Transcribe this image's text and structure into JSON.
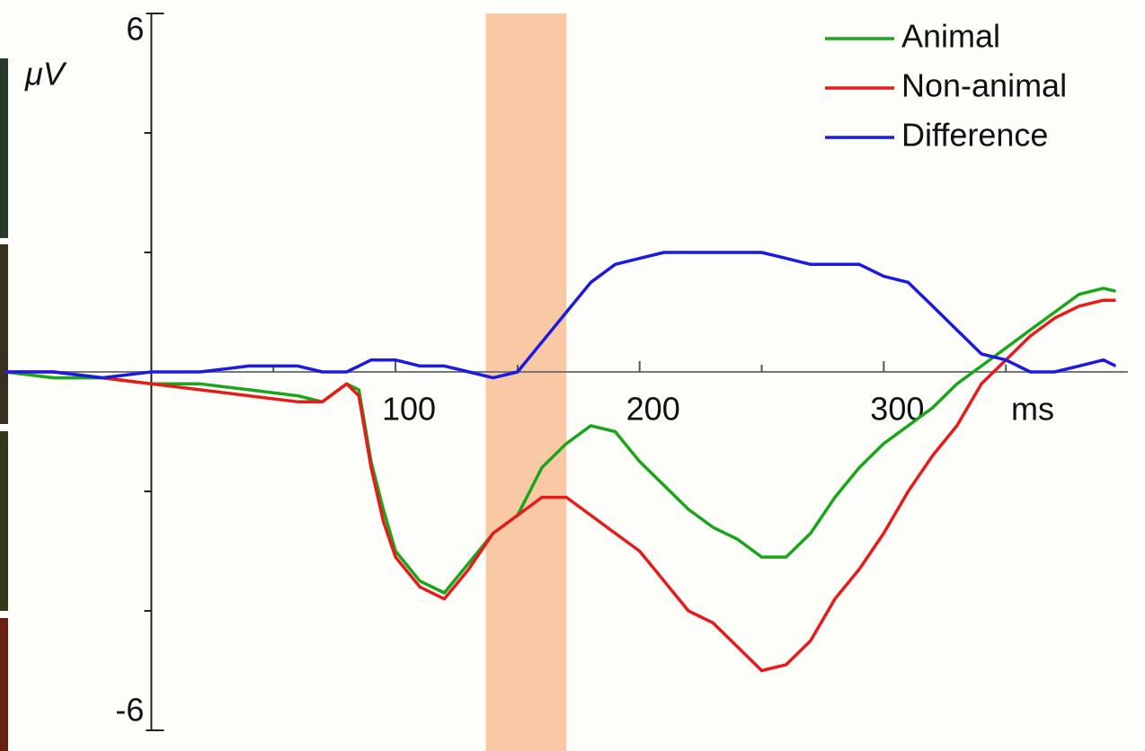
{
  "chart_data": {
    "type": "line",
    "y_label": "μV",
    "x_label": "ms",
    "x": [
      -60,
      -40,
      -20,
      0,
      20,
      40,
      60,
      70,
      80,
      85,
      90,
      95,
      100,
      110,
      120,
      130,
      140,
      150,
      160,
      170,
      180,
      190,
      200,
      210,
      220,
      230,
      240,
      250,
      260,
      270,
      280,
      290,
      300,
      310,
      320,
      330,
      340,
      350,
      360,
      370,
      380,
      390,
      395
    ],
    "series": [
      {
        "name": "Animal",
        "color": "#1aa61a",
        "values": [
          0,
          -0.1,
          -0.1,
          -0.2,
          -0.2,
          -0.3,
          -0.4,
          -0.5,
          -0.2,
          -0.3,
          -1.5,
          -2.3,
          -3.0,
          -3.5,
          -3.7,
          -3.2,
          -2.7,
          -2.4,
          -1.6,
          -1.2,
          -0.9,
          -1.0,
          -1.5,
          -1.9,
          -2.3,
          -2.6,
          -2.8,
          -3.1,
          -3.1,
          -2.7,
          -2.1,
          -1.6,
          -1.2,
          -0.9,
          -0.6,
          -0.2,
          0.1,
          0.4,
          0.7,
          1.0,
          1.3,
          1.4,
          1.35
        ]
      },
      {
        "name": "Non-animal",
        "color": "#e81a1a",
        "values": [
          0,
          0,
          -0.1,
          -0.2,
          -0.3,
          -0.4,
          -0.5,
          -0.5,
          -0.2,
          -0.4,
          -1.6,
          -2.5,
          -3.1,
          -3.6,
          -3.8,
          -3.3,
          -2.7,
          -2.4,
          -2.1,
          -2.1,
          -2.4,
          -2.7,
          -3.0,
          -3.5,
          -4.0,
          -4.2,
          -4.6,
          -5.0,
          -4.9,
          -4.5,
          -3.8,
          -3.3,
          -2.7,
          -2.0,
          -1.4,
          -0.9,
          -0.2,
          0.2,
          0.6,
          0.9,
          1.1,
          1.2,
          1.2
        ]
      },
      {
        "name": "Difference",
        "color": "#1a1ae0",
        "values": [
          0,
          0,
          -0.1,
          0,
          0,
          0.1,
          0.1,
          0,
          0,
          0.1,
          0.2,
          0.2,
          0.2,
          0.1,
          0.1,
          0,
          -0.1,
          0,
          0.5,
          1.0,
          1.5,
          1.8,
          1.9,
          2.0,
          2.0,
          2.0,
          2.0,
          2.0,
          1.9,
          1.8,
          1.8,
          1.8,
          1.6,
          1.5,
          1.1,
          0.7,
          0.3,
          0.2,
          0,
          0,
          0.1,
          0.2,
          0.1
        ]
      }
    ],
    "highlight": {
      "x": [
        137,
        170
      ],
      "color": "#f9c9a6"
    },
    "xlim": [
      -62,
      407
    ],
    "ylim": [
      -6,
      6
    ],
    "xticks": [
      100,
      200,
      300
    ],
    "xticks_minor": [
      50,
      150,
      250,
      350
    ],
    "yticks": [
      -6,
      6
    ],
    "yticks_minor": [
      -4,
      -2,
      2,
      4
    ],
    "legend": "top-right"
  }
}
